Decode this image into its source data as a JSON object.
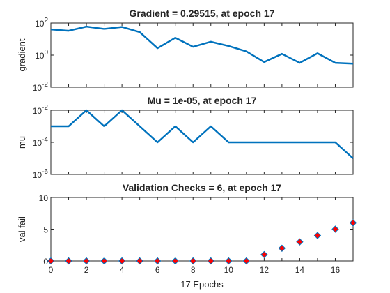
{
  "figure": {
    "xlabel": "17 Epochs"
  },
  "chart_data": [
    {
      "type": "line",
      "title": "Gradient = 0.29515, at epoch 17",
      "ylabel": "gradient",
      "yscale": "log",
      "xlim": [
        0,
        17
      ],
      "ylim": [
        0.01,
        100
      ],
      "ytick_labels": [
        {
          "base": "10",
          "exp": "-2"
        },
        {
          "base": "10",
          "exp": "0"
        },
        {
          "base": "10",
          "exp": "2"
        }
      ],
      "x": [
        0,
        1,
        2,
        3,
        4,
        5,
        6,
        7,
        8,
        9,
        10,
        11,
        12,
        13,
        14,
        15,
        16,
        17
      ],
      "y": [
        40,
        33,
        60,
        43,
        57,
        27,
        2.7,
        12,
        3.3,
        6.8,
        3.7,
        1.7,
        0.37,
        1.2,
        0.33,
        1.3,
        0.33,
        0.29515
      ],
      "color": "#0072bd"
    },
    {
      "type": "line",
      "title": "Mu = 1e-05, at epoch 17",
      "ylabel": "mu",
      "yscale": "log",
      "xlim": [
        0,
        17
      ],
      "ylim": [
        1e-06,
        0.01
      ],
      "ytick_labels": [
        {
          "base": "10",
          "exp": "-6"
        },
        {
          "base": "10",
          "exp": "-4"
        },
        {
          "base": "10",
          "exp": "-2"
        }
      ],
      "x": [
        0,
        1,
        2,
        3,
        4,
        5,
        6,
        7,
        8,
        9,
        10,
        11,
        12,
        13,
        14,
        15,
        16,
        17
      ],
      "y": [
        0.001,
        0.001,
        0.01,
        0.001,
        0.01,
        0.001,
        0.0001,
        0.001,
        0.0001,
        0.001,
        0.0001,
        0.0001,
        0.0001,
        0.0001,
        0.0001,
        0.0001,
        0.0001,
        1e-05
      ],
      "color": "#0072bd"
    },
    {
      "type": "scatter",
      "title": "Validation Checks = 6, at epoch 17",
      "ylabel": "val fail",
      "yscale": "linear",
      "xlim": [
        0,
        17
      ],
      "ylim": [
        0,
        10
      ],
      "ytick_labels": [
        "0",
        "5",
        "10"
      ],
      "xtick_labels": [
        "0",
        "2",
        "4",
        "6",
        "8",
        "10",
        "12",
        "14",
        "16"
      ],
      "x": [
        0,
        1,
        2,
        3,
        4,
        5,
        6,
        7,
        8,
        9,
        10,
        11,
        12,
        13,
        14,
        15,
        16,
        17
      ],
      "y": [
        0,
        0,
        0,
        0,
        0,
        0,
        0,
        0,
        0,
        0,
        0,
        0,
        1,
        2,
        3,
        4,
        5,
        6
      ],
      "marker": "diamond",
      "marker_fill": "#ff0000",
      "marker_edge": "#0072bd"
    }
  ]
}
